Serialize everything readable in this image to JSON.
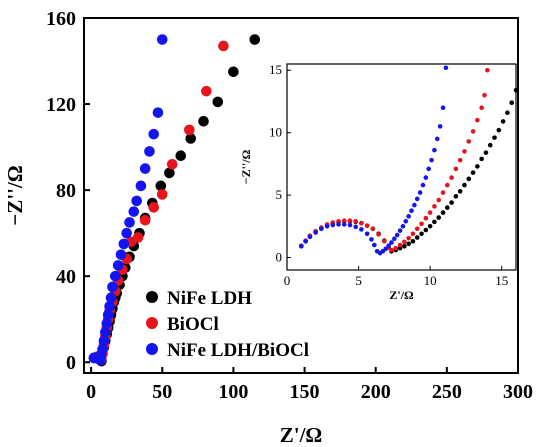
{
  "chart_data": [
    {
      "type": "scatter",
      "title": "",
      "xlabel": "Z'/Ω",
      "ylabel": "−Z''/Ω",
      "xlim": [
        -5,
        300
      ],
      "ylim": [
        -5,
        160
      ],
      "xticks": [
        0,
        50,
        100,
        150,
        200,
        250,
        300
      ],
      "xtick_labels": [
        "0",
        "50",
        "100",
        "150",
        "200",
        "250",
        "300"
      ],
      "yticks": [
        0,
        40,
        80,
        120,
        160
      ],
      "ytick_labels": [
        "0",
        "40",
        "80",
        "120",
        "160"
      ],
      "grid": false,
      "legend_position": "bottom-left",
      "series": [
        {
          "name": "NiFe LDH",
          "color": "#000000",
          "points": [
            [
              2,
              2
            ],
            [
              4,
              2.5
            ],
            [
              6,
              3
            ],
            [
              7,
              2
            ],
            [
              7.3,
              0.5
            ],
            [
              8,
              4
            ],
            [
              9,
              7
            ],
            [
              10,
              10
            ],
            [
              11,
              13
            ],
            [
              12,
              16
            ],
            [
              13,
              19
            ],
            [
              14,
              22
            ],
            [
              15,
              25
            ],
            [
              16,
              28
            ],
            [
              17,
              30
            ],
            [
              18,
              32
            ],
            [
              20,
              36
            ],
            [
              22,
              40
            ],
            [
              24,
              44
            ],
            [
              27,
              49
            ],
            [
              30,
              54
            ],
            [
              34,
              60
            ],
            [
              38,
              67
            ],
            [
              43,
              74
            ],
            [
              49,
              82
            ],
            [
              55,
              88
            ],
            [
              63,
              96
            ],
            [
              70,
              104
            ],
            [
              79,
              112
            ],
            [
              89,
              121
            ],
            [
              100,
              135
            ],
            [
              115,
              150
            ]
          ]
        },
        {
          "name": "BiOCl",
          "color": "#e8141c",
          "points": [
            [
              2,
              2
            ],
            [
              4,
              2.5
            ],
            [
              6,
              2.5
            ],
            [
              7,
              1
            ],
            [
              8,
              4
            ],
            [
              9,
              8
            ],
            [
              10,
              12
            ],
            [
              11,
              16
            ],
            [
              12,
              20
            ],
            [
              13,
              24
            ],
            [
              15,
              28
            ],
            [
              17,
              33
            ],
            [
              19,
              38
            ],
            [
              22,
              43
            ],
            [
              25,
              48
            ],
            [
              28,
              56
            ],
            [
              33,
              58
            ],
            [
              38,
              66
            ],
            [
              44,
              72
            ],
            [
              50,
              78
            ],
            [
              57,
              92
            ],
            [
              69,
              108
            ],
            [
              81,
              126
            ],
            [
              93,
              147
            ]
          ]
        },
        {
          "name": "NiFe LDH/BiOCl",
          "color": "#1414f0",
          "points": [
            [
              2,
              2
            ],
            [
              4,
              2
            ],
            [
              5.5,
              1.5
            ],
            [
              6.5,
              1
            ],
            [
              7,
              3
            ],
            [
              8,
              6
            ],
            [
              9,
              10
            ],
            [
              10,
              14
            ],
            [
              11,
              18
            ],
            [
              12,
              22
            ],
            [
              13,
              26
            ],
            [
              14,
              30
            ],
            [
              15,
              35
            ],
            [
              17,
              40
            ],
            [
              19,
              45
            ],
            [
              21,
              50
            ],
            [
              23,
              55
            ],
            [
              25,
              60
            ],
            [
              27,
              65
            ],
            [
              30,
              70
            ],
            [
              32,
              75
            ],
            [
              35,
              82
            ],
            [
              38,
              90
            ],
            [
              41,
              98
            ],
            [
              44,
              106
            ],
            [
              47,
              116
            ],
            [
              50,
              150
            ]
          ]
        }
      ]
    },
    {
      "type": "scatter",
      "title": "",
      "xlabel": "Z'/Ω",
      "ylabel": "−Z''/Ω",
      "xlim": [
        0,
        16
      ],
      "ylim": [
        -1,
        15.5
      ],
      "xticks": [
        0,
        5,
        10,
        15
      ],
      "xtick_labels": [
        "0",
        "5",
        "10",
        "15"
      ],
      "yticks": [
        0,
        5,
        10,
        15
      ],
      "ytick_labels": [
        "0",
        "5",
        "10",
        "15"
      ],
      "grid": false,
      "legend_position": "none",
      "series": [
        {
          "name": "NiFe LDH",
          "color": "#000000",
          "points": [
            [
              1,
              0.9
            ],
            [
              1.3,
              1.3
            ],
            [
              1.6,
              1.7
            ],
            [
              2,
              2.05
            ],
            [
              2.4,
              2.35
            ],
            [
              2.8,
              2.6
            ],
            [
              3.2,
              2.75
            ],
            [
              3.6,
              2.85
            ],
            [
              4,
              2.9
            ],
            [
              4.4,
              2.9
            ],
            [
              4.8,
              2.85
            ],
            [
              5.2,
              2.75
            ],
            [
              5.6,
              2.55
            ],
            [
              6,
              2.3
            ],
            [
              6.4,
              1.9
            ],
            [
              6.8,
              1.35
            ],
            [
              7.1,
              0.8
            ],
            [
              7.3,
              0.5
            ],
            [
              7.6,
              0.6
            ],
            [
              7.9,
              0.75
            ],
            [
              8.2,
              0.9
            ],
            [
              8.5,
              1.1
            ],
            [
              8.8,
              1.3
            ],
            [
              9.1,
              1.6
            ],
            [
              9.4,
              1.9
            ],
            [
              9.7,
              2.2
            ],
            [
              10,
              2.5
            ],
            [
              10.3,
              2.85
            ],
            [
              10.6,
              3.2
            ],
            [
              10.9,
              3.6
            ],
            [
              11.2,
              4
            ],
            [
              11.5,
              4.4
            ],
            [
              11.8,
              4.9
            ],
            [
              12.1,
              5.3
            ],
            [
              12.4,
              5.8
            ],
            [
              12.7,
              6.3
            ],
            [
              13,
              6.8
            ],
            [
              13.3,
              7.3
            ],
            [
              13.6,
              7.9
            ],
            [
              13.9,
              8.4
            ],
            [
              14.2,
              9
            ],
            [
              14.5,
              9.6
            ],
            [
              14.8,
              10.2
            ],
            [
              15.1,
              10.9
            ],
            [
              15.4,
              11.6
            ],
            [
              15.7,
              12.4
            ],
            [
              16,
              13.4
            ]
          ]
        },
        {
          "name": "BiOCl",
          "color": "#e8141c",
          "points": [
            [
              1,
              0.95
            ],
            [
              1.3,
              1.35
            ],
            [
              1.6,
              1.75
            ],
            [
              2,
              2.1
            ],
            [
              2.4,
              2.4
            ],
            [
              2.8,
              2.65
            ],
            [
              3.2,
              2.8
            ],
            [
              3.6,
              2.9
            ],
            [
              4,
              2.95
            ],
            [
              4.4,
              2.95
            ],
            [
              4.8,
              2.9
            ],
            [
              5.2,
              2.75
            ],
            [
              5.6,
              2.55
            ],
            [
              6,
              2.3
            ],
            [
              6.4,
              1.85
            ],
            [
              6.8,
              1.3
            ],
            [
              7.1,
              0.8
            ],
            [
              7.3,
              0.6
            ],
            [
              7.6,
              0.75
            ],
            [
              7.9,
              1
            ],
            [
              8.2,
              1.25
            ],
            [
              8.5,
              1.55
            ],
            [
              8.8,
              1.9
            ],
            [
              9.1,
              2.3
            ],
            [
              9.4,
              2.7
            ],
            [
              9.7,
              3.15
            ],
            [
              10,
              3.6
            ],
            [
              10.3,
              4.1
            ],
            [
              10.6,
              4.6
            ],
            [
              10.9,
              5.2
            ],
            [
              11.2,
              5.8
            ],
            [
              11.5,
              6.4
            ],
            [
              11.8,
              7.1
            ],
            [
              12.1,
              7.8
            ],
            [
              12.4,
              8.5
            ],
            [
              12.7,
              9.3
            ],
            [
              13,
              10.1
            ],
            [
              13.3,
              11
            ],
            [
              13.6,
              12
            ],
            [
              13.8,
              13
            ],
            [
              14,
              15
            ]
          ]
        },
        {
          "name": "NiFe LDH/BiOCl",
          "color": "#1414f0",
          "points": [
            [
              1,
              0.9
            ],
            [
              1.3,
              1.3
            ],
            [
              1.6,
              1.65
            ],
            [
              2,
              2
            ],
            [
              2.4,
              2.3
            ],
            [
              2.8,
              2.5
            ],
            [
              3.2,
              2.6
            ],
            [
              3.6,
              2.65
            ],
            [
              4,
              2.65
            ],
            [
              4.4,
              2.6
            ],
            [
              4.8,
              2.45
            ],
            [
              5.2,
              2.25
            ],
            [
              5.6,
              1.9
            ],
            [
              5.9,
              1.45
            ],
            [
              6.1,
              1
            ],
            [
              6.3,
              0.5
            ],
            [
              6.5,
              0.35
            ],
            [
              6.7,
              0.5
            ],
            [
              6.9,
              0.7
            ],
            [
              7.1,
              0.95
            ],
            [
              7.3,
              1.2
            ],
            [
              7.5,
              1.5
            ],
            [
              7.7,
              1.8
            ],
            [
              7.9,
              2.15
            ],
            [
              8.1,
              2.5
            ],
            [
              8.3,
              2.9
            ],
            [
              8.5,
              3.3
            ],
            [
              8.7,
              3.75
            ],
            [
              8.9,
              4.2
            ],
            [
              9.1,
              4.7
            ],
            [
              9.3,
              5.2
            ],
            [
              9.5,
              5.8
            ],
            [
              9.7,
              6.4
            ],
            [
              9.9,
              7.1
            ],
            [
              10.1,
              7.8
            ],
            [
              10.3,
              8.6
            ],
            [
              10.5,
              9.5
            ],
            [
              10.7,
              10.5
            ],
            [
              10.9,
              12
            ],
            [
              11.1,
              15.2
            ]
          ]
        }
      ]
    }
  ]
}
